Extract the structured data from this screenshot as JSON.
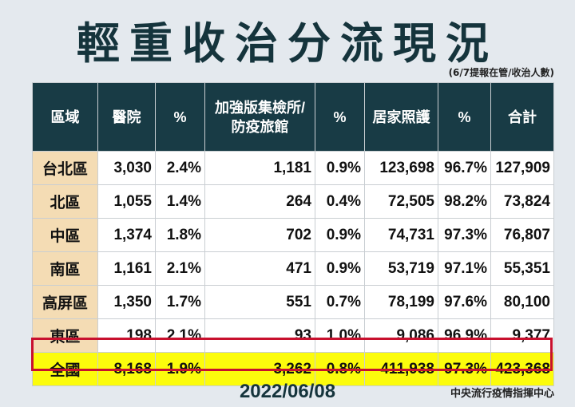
{
  "title": "輕重收治分流現況",
  "subnote": "(6/7提報在管/收治人數)",
  "headers": [
    "區域",
    "醫院",
    "%",
    "加強版集檢所/\n防疫旅館",
    "%",
    "居家照護",
    "%",
    "合計"
  ],
  "rows": [
    [
      "台北區",
      "3,030",
      "2.4%",
      "1,181",
      "0.9%",
      "123,698",
      "96.7%",
      "127,909"
    ],
    [
      "北區",
      "1,055",
      "1.4%",
      "264",
      "0.4%",
      "72,505",
      "98.2%",
      "73,824"
    ],
    [
      "中區",
      "1,374",
      "1.8%",
      "702",
      "0.9%",
      "74,731",
      "97.3%",
      "76,807"
    ],
    [
      "南區",
      "1,161",
      "2.1%",
      "471",
      "0.9%",
      "53,719",
      "97.1%",
      "55,351"
    ],
    [
      "高屏區",
      "1,350",
      "1.7%",
      "551",
      "0.7%",
      "78,199",
      "97.6%",
      "80,100"
    ],
    [
      "東區",
      "198",
      "2.1%",
      "93",
      "1.0%",
      "9,086",
      "96.9%",
      "9,377"
    ]
  ],
  "total_row": [
    "全國",
    "8,168",
    "1.9%",
    "3,262",
    "0.8%",
    "411,938",
    "97.3%",
    "423,368"
  ],
  "date": "2022/06/08",
  "source": "中央流行疫情指揮中心",
  "colors": {
    "header_bg": "#183b45",
    "region_bg": "#f4dcb4",
    "total_bg": "#fcfc0c",
    "total_border": "#c8102e"
  }
}
